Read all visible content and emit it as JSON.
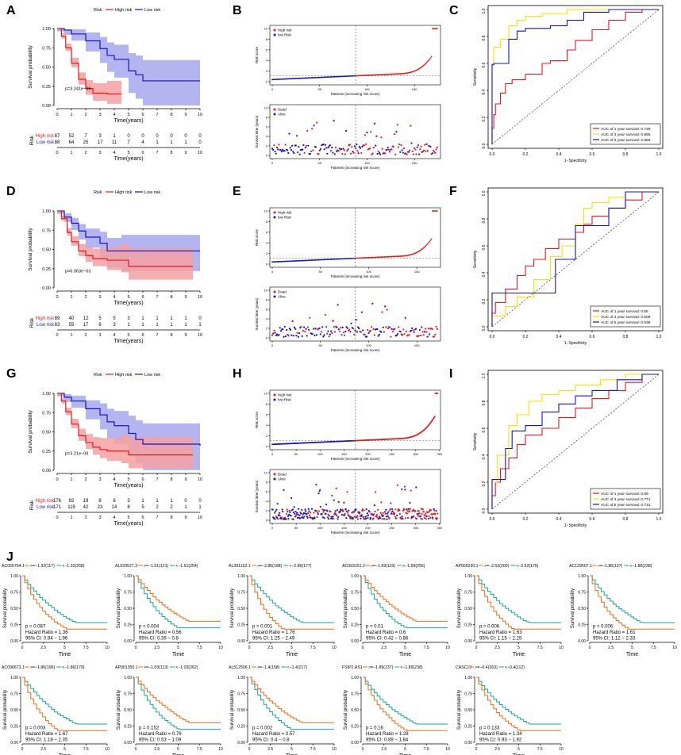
{
  "colors": {
    "high": "#e8191f",
    "low": "#1515c8",
    "high_fill": "#f4a0a0",
    "low_fill": "#a7a7ee",
    "orange": "#f26c13",
    "green": "#16a79a",
    "yellow": "#f5e500",
    "blue": "#1515c8",
    "red": "#e8191f"
  },
  "common": {
    "risk_label": "Risk",
    "high_risk": "High risk",
    "low_risk": "Low risk",
    "survival_probability": "Survival probability",
    "time_years": "Time(years)",
    "risk_axis": "Risk",
    "risk_score": "Risk score",
    "survival_time": "Survival time (years)",
    "patients": "Patients (increasing risk score)",
    "sensitivity": "Sensitivity",
    "specificity": "1−Specificity",
    "high_risk_b": "High risk",
    "low_risk_b": "low Risk",
    "dead": "Dead",
    "alive": "Alive",
    "time": "Time",
    "surv_prob": "Survival probability"
  },
  "rows": [
    {
      "km": {
        "letter": "A",
        "pvalue": "p=3.241e−09",
        "high_curve": [
          [
            0,
            1.0
          ],
          [
            0.3,
            0.9
          ],
          [
            0.6,
            0.75
          ],
          [
            1.0,
            0.55
          ],
          [
            1.5,
            0.34
          ],
          [
            2.0,
            0.22
          ],
          [
            2.5,
            0.16
          ],
          [
            3.5,
            0.15
          ],
          [
            4.5,
            0.15
          ]
        ],
        "low_curve": [
          [
            0,
            1.0
          ],
          [
            0.5,
            0.98
          ],
          [
            1.0,
            0.93
          ],
          [
            2.0,
            0.84
          ],
          [
            3.0,
            0.74
          ],
          [
            3.5,
            0.65
          ],
          [
            4.0,
            0.6
          ],
          [
            5.0,
            0.45
          ],
          [
            5.5,
            0.4
          ],
          [
            6.0,
            0.32
          ],
          [
            10.0,
            0.32
          ]
        ],
        "table_high": [
          "87",
          "52",
          "7",
          "3",
          "1",
          "0",
          "0",
          "0",
          "0",
          "0",
          "0"
        ],
        "table_low": [
          "88",
          "64",
          "25",
          "17",
          "11",
          "7",
          "4",
          "1",
          "1",
          "1",
          "0"
        ],
        "ticks": [
          "0",
          "1",
          "2",
          "3",
          "4",
          "5",
          "6",
          "7",
          "8",
          "9",
          "10"
        ]
      },
      "risk": {
        "letter": "B",
        "n": 175,
        "cutoff": 88,
        "ymax": "10",
        "yticks": [
          "0",
          "2",
          "4",
          "6",
          "8",
          "10"
        ],
        "xticks": [
          "0",
          "50",
          "100",
          "150"
        ],
        "sticks": [
          "0",
          "2",
          "4",
          "6",
          "8",
          "10"
        ]
      },
      "roc": {
        "letter": "C",
        "legend": [
          "AUC of 1 year survival: 0.739",
          "AUC of 3 year survival: 0.895",
          "AUC of 5 year survival: 0.865"
        ],
        "curves": [
          [
            [
              0,
              0
            ],
            [
              0.01,
              0.12
            ],
            [
              0.02,
              0.22
            ],
            [
              0.05,
              0.3
            ],
            [
              0.08,
              0.38
            ],
            [
              0.12,
              0.45
            ],
            [
              0.2,
              0.48
            ],
            [
              0.3,
              0.52
            ],
            [
              0.35,
              0.6
            ],
            [
              0.45,
              0.62
            ],
            [
              0.5,
              0.7
            ],
            [
              0.6,
              0.77
            ],
            [
              0.7,
              0.85
            ],
            [
              0.8,
              0.92
            ],
            [
              0.9,
              0.98
            ],
            [
              1,
              1
            ]
          ],
          [
            [
              0,
              0
            ],
            [
              0.01,
              0.6
            ],
            [
              0.05,
              0.72
            ],
            [
              0.1,
              0.78
            ],
            [
              0.15,
              0.88
            ],
            [
              0.2,
              0.92
            ],
            [
              0.3,
              0.95
            ],
            [
              0.45,
              0.97
            ],
            [
              0.6,
              1
            ],
            [
              1,
              1
            ]
          ],
          [
            [
              0,
              0
            ],
            [
              0.01,
              0.59
            ],
            [
              0.1,
              0.6
            ],
            [
              0.15,
              0.78
            ],
            [
              0.2,
              0.84
            ],
            [
              0.35,
              0.86
            ],
            [
              0.45,
              0.88
            ],
            [
              0.55,
              0.92
            ],
            [
              0.7,
              0.98
            ],
            [
              1,
              1
            ]
          ]
        ],
        "ticks": [
          "0.0",
          "0.2",
          "0.4",
          "0.6",
          "0.8",
          "1.0"
        ]
      }
    },
    {
      "km": {
        "letter": "D",
        "pvalue": "p=6.063e−03",
        "high_curve": [
          [
            0,
            1.0
          ],
          [
            0.3,
            0.9
          ],
          [
            0.7,
            0.72
          ],
          [
            1.0,
            0.6
          ],
          [
            1.5,
            0.48
          ],
          [
            2.0,
            0.42
          ],
          [
            2.5,
            0.38
          ],
          [
            3.5,
            0.36
          ],
          [
            4.5,
            0.36
          ],
          [
            5.0,
            0.28
          ],
          [
            9.5,
            0.28
          ]
        ],
        "low_curve": [
          [
            0,
            1.0
          ],
          [
            0.5,
            0.92
          ],
          [
            1.0,
            0.84
          ],
          [
            1.5,
            0.74
          ],
          [
            2.0,
            0.66
          ],
          [
            3.0,
            0.58
          ],
          [
            3.5,
            0.48
          ],
          [
            4.5,
            0.48
          ],
          [
            10.0,
            0.48
          ]
        ],
        "table_high": [
          "89",
          "40",
          "12",
          "5",
          "5",
          "3",
          "1",
          "1",
          "1",
          "1",
          "0"
        ],
        "table_low": [
          "83",
          "55",
          "17",
          "6",
          "3",
          "1",
          "1",
          "1",
          "1",
          "1",
          "1"
        ],
        "ticks": [
          "0",
          "1",
          "2",
          "3",
          "4",
          "5",
          "6",
          "7",
          "8",
          "9",
          "10"
        ]
      },
      "risk": {
        "letter": "E",
        "n": 172,
        "cutoff": 86,
        "ymax": "10",
        "yticks": [
          "0",
          "2",
          "4",
          "6",
          "8",
          "10"
        ],
        "xticks": [
          "0",
          "50",
          "100",
          "150"
        ],
        "sticks": [
          "0",
          "2",
          "4",
          "6",
          "8",
          "10"
        ]
      },
      "roc": {
        "letter": "F",
        "legend": [
          "AUC of 1 year survival: 0.65",
          "AUC of 3 year survival: 0.609",
          "AUC of 5 year survival: 0.539"
        ],
        "curves": [
          [
            [
              0,
              0
            ],
            [
              0.02,
              0.1
            ],
            [
              0.08,
              0.18
            ],
            [
              0.15,
              0.28
            ],
            [
              0.2,
              0.38
            ],
            [
              0.25,
              0.45
            ],
            [
              0.32,
              0.5
            ],
            [
              0.4,
              0.58
            ],
            [
              0.5,
              0.65
            ],
            [
              0.55,
              0.7
            ],
            [
              0.6,
              0.76
            ],
            [
              0.7,
              0.82
            ],
            [
              0.8,
              0.88
            ],
            [
              0.9,
              0.94
            ],
            [
              1,
              1
            ]
          ],
          [
            [
              0,
              0
            ],
            [
              0.08,
              0.08
            ],
            [
              0.15,
              0.15
            ],
            [
              0.25,
              0.22
            ],
            [
              0.35,
              0.35
            ],
            [
              0.42,
              0.52
            ],
            [
              0.5,
              0.6
            ],
            [
              0.55,
              0.76
            ],
            [
              0.6,
              0.88
            ],
            [
              0.7,
              0.92
            ],
            [
              0.8,
              0.96
            ],
            [
              1,
              1
            ]
          ],
          [
            [
              0,
              0
            ],
            [
              0.01,
              0.25
            ],
            [
              0.15,
              0.25
            ],
            [
              0.3,
              0.25
            ],
            [
              0.38,
              0.25
            ],
            [
              0.4,
              0.5
            ],
            [
              0.5,
              0.5
            ],
            [
              0.55,
              0.75
            ],
            [
              0.7,
              0.75
            ],
            [
              0.72,
              0.88
            ],
            [
              0.8,
              0.88
            ],
            [
              0.82,
              1
            ],
            [
              1,
              1
            ]
          ]
        ],
        "ticks": [
          "0.0",
          "0.2",
          "0.4",
          "0.6",
          "0.8",
          "1.0"
        ]
      }
    },
    {
      "km": {
        "letter": "G",
        "pvalue": "p=3.21e−09",
        "high_curve": [
          [
            0,
            1.0
          ],
          [
            0.3,
            0.9
          ],
          [
            0.6,
            0.76
          ],
          [
            1.0,
            0.6
          ],
          [
            1.5,
            0.45
          ],
          [
            2.0,
            0.36
          ],
          [
            2.5,
            0.3
          ],
          [
            3.0,
            0.27
          ],
          [
            3.5,
            0.25
          ],
          [
            4.5,
            0.25
          ],
          [
            5.0,
            0.2
          ],
          [
            9.5,
            0.2
          ]
        ],
        "low_curve": [
          [
            0,
            1.0
          ],
          [
            0.5,
            0.95
          ],
          [
            1.0,
            0.9
          ],
          [
            2.0,
            0.8
          ],
          [
            3.0,
            0.72
          ],
          [
            3.5,
            0.63
          ],
          [
            4.0,
            0.58
          ],
          [
            5.0,
            0.48
          ],
          [
            5.5,
            0.4
          ],
          [
            6.0,
            0.34
          ],
          [
            10.0,
            0.32
          ]
        ],
        "table_high": [
          "176",
          "92",
          "19",
          "8",
          "6",
          "3",
          "1",
          "1",
          "1",
          "0",
          "0"
        ],
        "table_low": [
          "171",
          "119",
          "42",
          "23",
          "14",
          "8",
          "5",
          "2",
          "2",
          "1",
          "1"
        ],
        "ticks": [
          "0",
          "1",
          "2",
          "3",
          "4",
          "5",
          "6",
          "7",
          "8",
          "9",
          "10"
        ]
      },
      "risk": {
        "letter": "H",
        "n": 347,
        "cutoff": 174,
        "ymax": "10",
        "yticks": [
          "0",
          "2",
          "4",
          "6",
          "8",
          "10"
        ],
        "xticks": [
          "0",
          "50",
          "100",
          "150",
          "200",
          "250",
          "300",
          "350"
        ],
        "sticks": [
          "0",
          "2",
          "4",
          "6",
          "8",
          "10"
        ]
      },
      "roc": {
        "letter": "I",
        "legend": [
          "AUC of 1 year survival: 0.69",
          "AUC of 3 year survival: 0.771",
          "AUC of 5 year survival: 0.731"
        ],
        "curves": [
          [
            [
              0,
              0
            ],
            [
              0.02,
              0.1
            ],
            [
              0.05,
              0.2
            ],
            [
              0.1,
              0.3
            ],
            [
              0.15,
              0.38
            ],
            [
              0.2,
              0.48
            ],
            [
              0.3,
              0.55
            ],
            [
              0.4,
              0.6
            ],
            [
              0.5,
              0.68
            ],
            [
              0.6,
              0.75
            ],
            [
              0.7,
              0.82
            ],
            [
              0.8,
              0.88
            ],
            [
              0.9,
              0.94
            ],
            [
              1,
              1
            ]
          ],
          [
            [
              0,
              0
            ],
            [
              0.03,
              0.2
            ],
            [
              0.1,
              0.4
            ],
            [
              0.15,
              0.62
            ],
            [
              0.22,
              0.7
            ],
            [
              0.3,
              0.8
            ],
            [
              0.4,
              0.85
            ],
            [
              0.5,
              0.88
            ],
            [
              0.65,
              0.92
            ],
            [
              0.8,
              0.96
            ],
            [
              1,
              1
            ]
          ],
          [
            [
              0,
              0
            ],
            [
              0.02,
              0.22
            ],
            [
              0.08,
              0.22
            ],
            [
              0.12,
              0.45
            ],
            [
              0.2,
              0.58
            ],
            [
              0.3,
              0.62
            ],
            [
              0.4,
              0.72
            ],
            [
              0.5,
              0.78
            ],
            [
              0.6,
              0.84
            ],
            [
              0.75,
              0.88
            ],
            [
              0.9,
              0.96
            ],
            [
              1,
              1
            ]
          ]
        ],
        "ticks": [
          "0.0",
          "0.2",
          "0.4",
          "0.6",
          "0.8",
          "1.0"
        ]
      }
    }
  ],
  "panel_j": {
    "letter": "J",
    "xticks": [
      "0",
      "2.5",
      "5",
      "7.5",
      "10"
    ],
    "yticks": [
      "0.00",
      "0.25",
      "0.50",
      "0.75",
      "1.00"
    ],
    "plots": [
      {
        "gene": "AC055764.1",
        "high": ">=−1.32(117)",
        "low": "<−1.32(258)",
        "p": "p = 0.087",
        "hr": "Hazard Ratio = 1.36",
        "ci": "95% CI: 0.94 − 1.96"
      },
      {
        "gene": "AL033527.3",
        "high": ">=−1.51(121)",
        "low": "<−1.51(254)",
        "p": "p = 0.004",
        "hr": "Hazard Ratio = 0.56",
        "ci": "95% CI: 0.39 − 0.8"
      },
      {
        "gene": "AL391152.1",
        "high": ">=−2.86(198)",
        "low": "<−2.86(177)",
        "p": "p = 0.001",
        "hr": "Hazard Ratio = 1.76",
        "ci": "95% CI: 1.25 − 2.49"
      },
      {
        "gene": "AC093151.2",
        "high": ">=−1.59(119)",
        "low": "<−1.59(256)",
        "p": "p = 0.01",
        "hr": "Hazard Ratio = 0.6",
        "ci": "95% CI: 0.42 − 0.86"
      },
      {
        "gene": "AP005230.1",
        "high": ">=−2.52(200)",
        "low": "<−2.52(175)",
        "p": "p = 0.006",
        "hr": "Hazard Ratio = 1.63",
        "ci": "95% CI: 1.15 − 2.29"
      },
      {
        "gene": "AC129507.1",
        "high": ">=−1.86(137)",
        "low": "<−1.86(238)",
        "p": "p = 0.006",
        "hr": "Hazard Ratio = 1.61",
        "ci": "95% CI: 1.12 − 2.33"
      },
      {
        "gene": "AC090673.1",
        "high": ">=−1.86(196)",
        "low": "<−1.86(179)",
        "p": "p = 0.003",
        "hr": "Hazard Ratio = 1.67",
        "ci": "95% CI: 1.18 − 2.35"
      },
      {
        "gene": "AP001350.1",
        "high": ">=−1.03(113)",
        "low": "<−1.03(262)",
        "p": "p = 0.152",
        "hr": "Hazard Ratio = 0.76",
        "ci": "95% CI: 0.53 − 1.09"
      },
      {
        "gene": "AL512506.1",
        "high": ">=−1.4(158)",
        "low": "<−1.4(217)",
        "p": "p = 0.002",
        "hr": "Hazard Ratio = 0.57",
        "ci": "95% CI: 0.4 − 0.8"
      },
      {
        "gene": "FSIP2.AS1",
        "high": ">=−1.89(137)",
        "low": "<−1.89(238)",
        "p": "p = 0.16",
        "hr": "Hazard Ratio = 1.28",
        "ci": "95% CI: 0.89 − 1.84"
      },
      {
        "gene": "CASC19",
        "high": ">=−0.4(263)",
        "low": "<−0.4(112)",
        "p": "p = 0.133",
        "hr": "Hazard Ratio = 1.34",
        "ci": "95% CI: 0.93 − 1.92"
      }
    ]
  }
}
